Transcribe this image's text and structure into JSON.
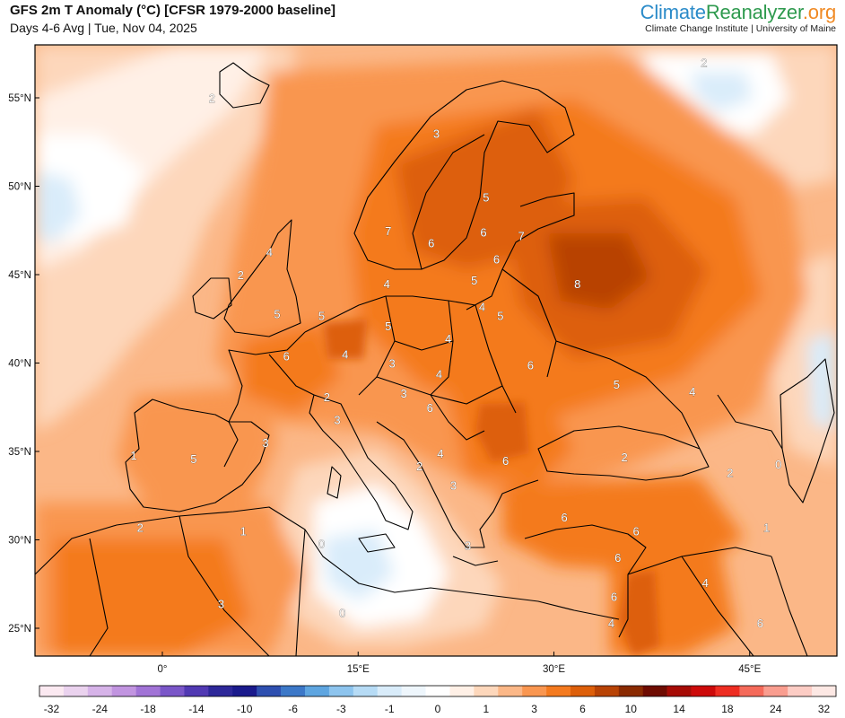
{
  "header": {
    "title": "GFS 2m T Anomaly (°C) [CFSR 1979-2000 baseline]",
    "subtitle": "Days 4-6 Avg | Tue, Nov 04, 2025"
  },
  "brand": {
    "logo_part1": "Climate",
    "logo_part2": "Reanalyzer",
    "logo_part3": ".org",
    "affiliation": "Climate Change Institute | University of Maine",
    "colors": {
      "climate": "#2b8bc9",
      "reanalyzer": "#2e9a4e",
      "org": "#f08a24"
    }
  },
  "map": {
    "lat_ticks": [
      "55°N",
      "50°N",
      "45°N",
      "40°N",
      "35°N",
      "30°N",
      "25°N"
    ],
    "lon_ticks": [
      "0°",
      "15°E",
      "30°E",
      "45°E"
    ],
    "contour_labels": [
      {
        "text": "2",
        "lon": 3.8,
        "lat": 55.0
      },
      {
        "text": "2",
        "lon": 41.5,
        "lat": 57.0
      },
      {
        "text": "3",
        "lon": 21.0,
        "lat": 53.0
      },
      {
        "text": "5",
        "lon": 24.8,
        "lat": 49.4
      },
      {
        "text": "7",
        "lon": 17.3,
        "lat": 47.5
      },
      {
        "text": "6",
        "lon": 20.6,
        "lat": 46.8
      },
      {
        "text": "6",
        "lon": 24.6,
        "lat": 47.4
      },
      {
        "text": "7",
        "lon": 27.5,
        "lat": 47.2
      },
      {
        "text": "6",
        "lon": 25.6,
        "lat": 45.9
      },
      {
        "text": "8",
        "lon": 31.8,
        "lat": 44.5
      },
      {
        "text": "4",
        "lon": 8.2,
        "lat": 46.3
      },
      {
        "text": "2",
        "lon": 6.0,
        "lat": 45.0
      },
      {
        "text": "4",
        "lon": 17.2,
        "lat": 44.5
      },
      {
        "text": "5",
        "lon": 23.9,
        "lat": 44.7
      },
      {
        "text": "4",
        "lon": 24.5,
        "lat": 43.2
      },
      {
        "text": "5",
        "lon": 25.9,
        "lat": 42.7
      },
      {
        "text": "5",
        "lon": 8.8,
        "lat": 42.8
      },
      {
        "text": "5",
        "lon": 12.2,
        "lat": 42.7
      },
      {
        "text": "5",
        "lon": 17.3,
        "lat": 42.1
      },
      {
        "text": "4",
        "lon": 21.9,
        "lat": 41.4
      },
      {
        "text": "4",
        "lon": 14.0,
        "lat": 40.5
      },
      {
        "text": "6",
        "lon": 9.5,
        "lat": 40.4
      },
      {
        "text": "3",
        "lon": 17.6,
        "lat": 40.0
      },
      {
        "text": "4",
        "lon": 21.2,
        "lat": 39.4
      },
      {
        "text": "6",
        "lon": 28.2,
        "lat": 39.9
      },
      {
        "text": "5",
        "lon": 34.8,
        "lat": 38.8
      },
      {
        "text": "4",
        "lon": 40.6,
        "lat": 38.4
      },
      {
        "text": "2",
        "lon": 12.6,
        "lat": 38.1
      },
      {
        "text": "3",
        "lon": 18.5,
        "lat": 38.3
      },
      {
        "text": "6",
        "lon": 20.5,
        "lat": 37.5
      },
      {
        "text": "3",
        "lon": 13.4,
        "lat": 36.8
      },
      {
        "text": "3",
        "lon": 7.9,
        "lat": 35.5
      },
      {
        "text": "1",
        "lon": -2.2,
        "lat": 34.8
      },
      {
        "text": "5",
        "lon": 2.4,
        "lat": 34.6
      },
      {
        "text": "4",
        "lon": 21.3,
        "lat": 34.9
      },
      {
        "text": "2",
        "lon": 19.7,
        "lat": 34.2
      },
      {
        "text": "6",
        "lon": 26.3,
        "lat": 34.5
      },
      {
        "text": "3",
        "lon": 22.3,
        "lat": 33.1
      },
      {
        "text": "2",
        "lon": 35.4,
        "lat": 34.7
      },
      {
        "text": "2",
        "lon": 43.5,
        "lat": 33.8
      },
      {
        "text": "0",
        "lon": 47.2,
        "lat": 34.3
      },
      {
        "text": "2",
        "lon": -1.7,
        "lat": 30.7
      },
      {
        "text": "1",
        "lon": 6.2,
        "lat": 30.5
      },
      {
        "text": "6",
        "lon": 30.8,
        "lat": 31.3
      },
      {
        "text": "6",
        "lon": 36.3,
        "lat": 30.5
      },
      {
        "text": "1",
        "lon": 46.3,
        "lat": 30.7
      },
      {
        "text": "0",
        "lon": 12.2,
        "lat": 29.8
      },
      {
        "text": "3",
        "lon": 23.4,
        "lat": 29.7
      },
      {
        "text": "6",
        "lon": 34.9,
        "lat": 29.0
      },
      {
        "text": "4",
        "lon": 41.6,
        "lat": 27.6
      },
      {
        "text": "6",
        "lon": 34.6,
        "lat": 26.8
      },
      {
        "text": "3",
        "lon": 4.5,
        "lat": 26.4
      },
      {
        "text": "0",
        "lon": 13.8,
        "lat": 25.9
      },
      {
        "text": "4",
        "lon": 34.4,
        "lat": 25.3
      },
      {
        "text": "6",
        "lon": 45.8,
        "lat": 25.3
      }
    ]
  },
  "colorbar": {
    "tick_labels": [
      "-32",
      "-24",
      "-18",
      "-14",
      "-10",
      "-6",
      "-3",
      "-1",
      "0",
      "1",
      "3",
      "6",
      "10",
      "14",
      "18",
      "24",
      "32"
    ],
    "colors": [
      "#fbe9f1",
      "#ead2ee",
      "#d6b3e8",
      "#c194e0",
      "#a173d6",
      "#7a56c8",
      "#5139b3",
      "#2d2799",
      "#1a1a8c",
      "#2e4fb0",
      "#3c78c8",
      "#5ea5e0",
      "#8dc4ee",
      "#b6dbf5",
      "#d9ecfa",
      "#eef6fc",
      "#ffffff",
      "#fff0e6",
      "#fdd7bb",
      "#fbb787",
      "#f99650",
      "#f47a1f",
      "#dd5f0a",
      "#b84305",
      "#8a2a02",
      "#6e0c02",
      "#a60b05",
      "#cd0a0a",
      "#ee2d22",
      "#f56a5a",
      "#f99d8f",
      "#fcccc4",
      "#fde8e4"
    ]
  }
}
